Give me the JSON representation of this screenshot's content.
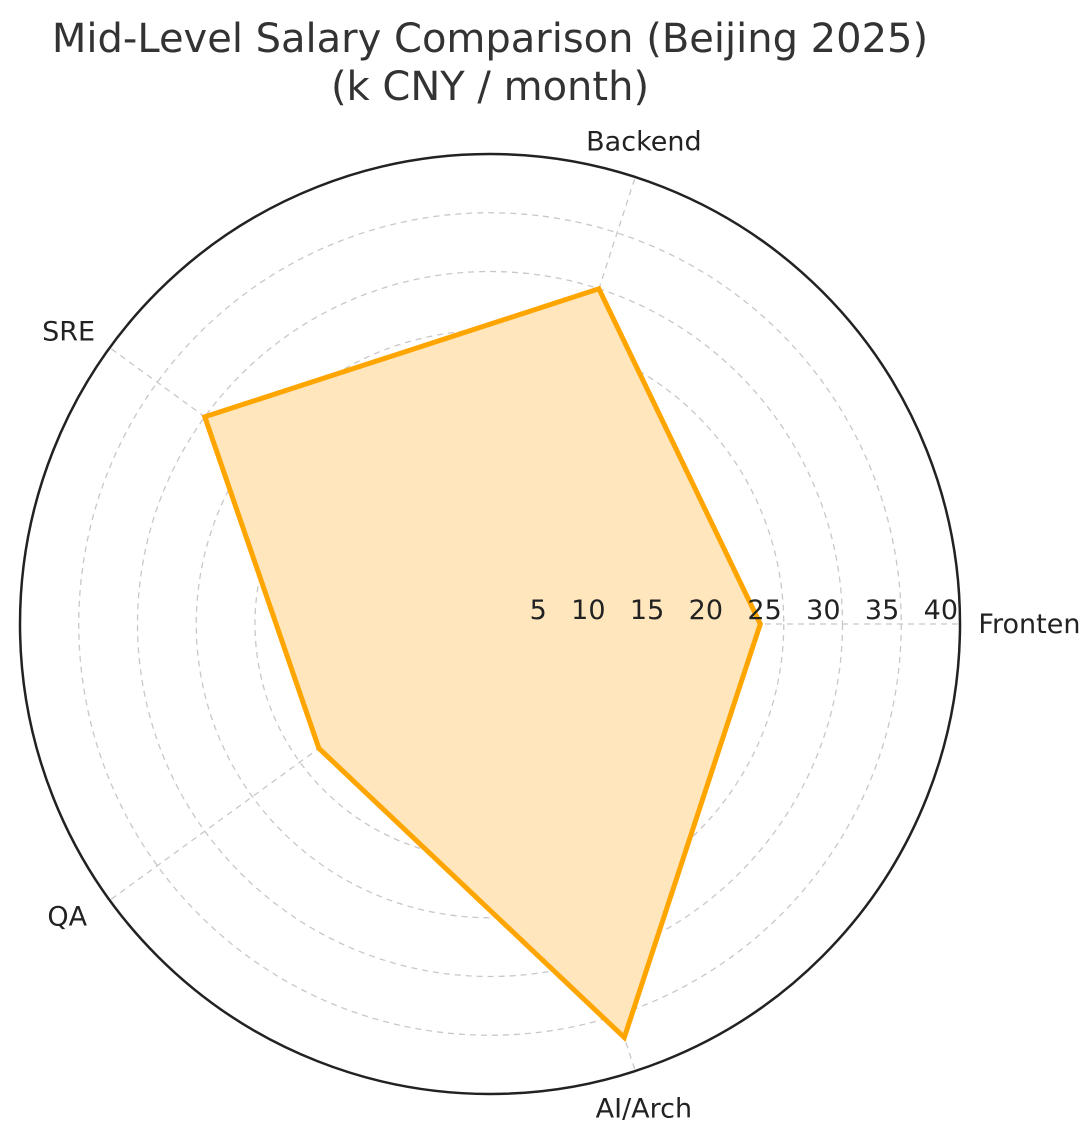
{
  "chart_data": {
    "type": "radar",
    "title": "Mid-Level Salary Comparison (Beijing 2025)",
    "subtitle": "(k CNY / month)",
    "categories": [
      "Frontend",
      "Backend",
      "SRE",
      "QA",
      "AI/Arch"
    ],
    "series": [
      {
        "values": [
          23,
          30,
          30,
          18,
          37
        ],
        "color": "#ffa500",
        "fill": "#ffe6bd"
      }
    ],
    "rlim": [
      0,
      40
    ],
    "rticks": [
      "5",
      "10",
      "15",
      "20",
      "25",
      "30",
      "35",
      "40"
    ],
    "grid": true
  }
}
